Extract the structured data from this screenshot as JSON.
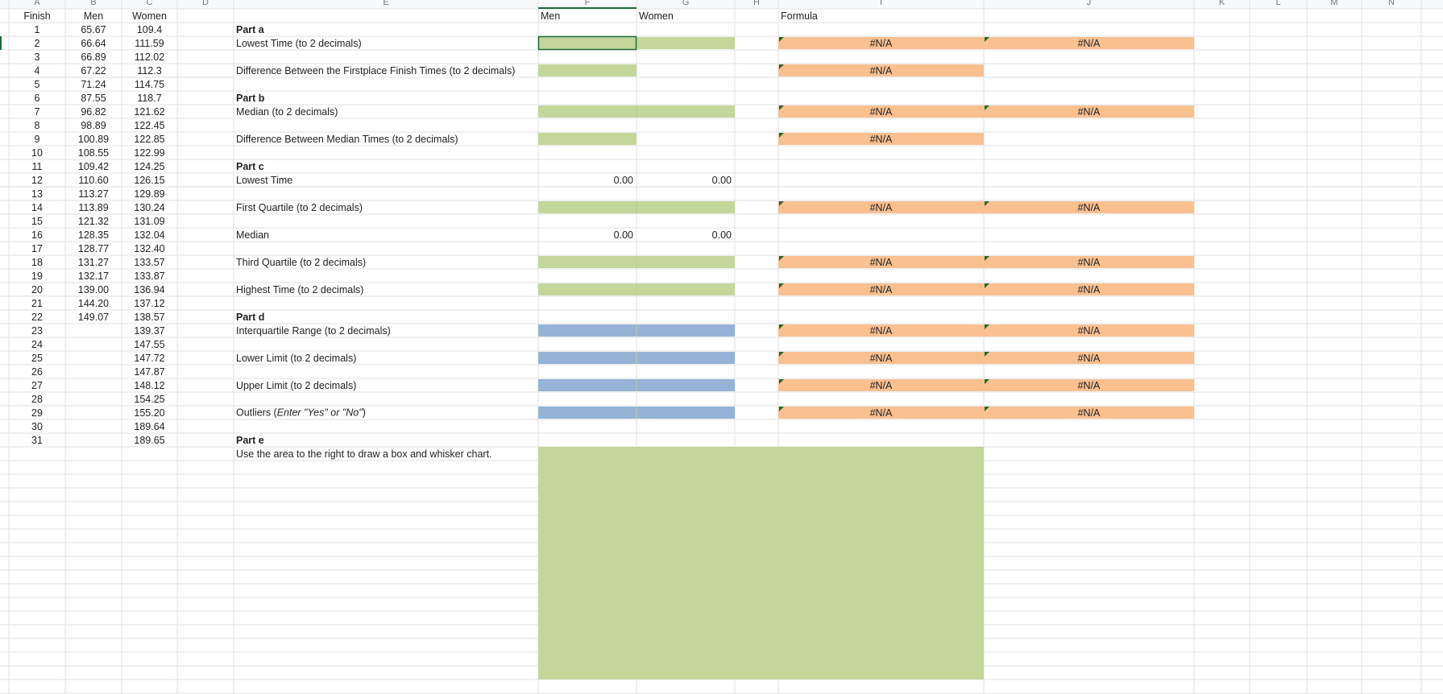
{
  "column_letters": [
    "A",
    "B",
    "C",
    "D",
    "E",
    "F",
    "G",
    "H",
    "I",
    "J",
    "K",
    "L",
    "M",
    "N"
  ],
  "header": {
    "finish": "Finish",
    "men": "Men",
    "women": "Women"
  },
  "answer_header": {
    "men": "Men",
    "women": "Women",
    "formula": "Formula"
  },
  "fills": {
    "green": "#c4d79b",
    "blue": "#95b3d7",
    "formula": "#fac090",
    "marker": "#1e6b2a"
  },
  "finish_table": [
    [
      1,
      "65.67",
      "109.4"
    ],
    [
      2,
      "66.64",
      "111.59"
    ],
    [
      3,
      "66.89",
      "112.02"
    ],
    [
      4,
      "67.22",
      "112.3"
    ],
    [
      5,
      "71.24",
      "114.75"
    ],
    [
      6,
      "87.55",
      "118.7"
    ],
    [
      7,
      "96.82",
      "121.62"
    ],
    [
      8,
      "98.89",
      "122.45"
    ],
    [
      9,
      "100.89",
      "122.85"
    ],
    [
      10,
      "108.55",
      "122.99"
    ],
    [
      11,
      "109.42",
      "124.25"
    ],
    [
      12,
      "110.60",
      "126.15"
    ],
    [
      13,
      "113.27",
      "129.89"
    ],
    [
      14,
      "113.89",
      "130.24"
    ],
    [
      15,
      "121.32",
      "131.09"
    ],
    [
      16,
      "128.35",
      "132.04"
    ],
    [
      17,
      "128.77",
      "132.40"
    ],
    [
      18,
      "131.27",
      "133.57"
    ],
    [
      19,
      "132.17",
      "133.87"
    ],
    [
      20,
      "139.00",
      "136.94"
    ],
    [
      21,
      "144.20",
      "137.12"
    ],
    [
      22,
      "149.07",
      "138.57"
    ],
    [
      23,
      null,
      "139.37"
    ],
    [
      24,
      null,
      "147.55"
    ],
    [
      25,
      null,
      "147.72"
    ],
    [
      26,
      null,
      "147.87"
    ],
    [
      27,
      null,
      "148.12"
    ],
    [
      28,
      null,
      "154.25"
    ],
    [
      29,
      null,
      "155.20"
    ],
    [
      30,
      null,
      "189.64"
    ],
    [
      31,
      null,
      "189.65"
    ]
  ],
  "worksheet": [
    {
      "label": "Part a",
      "heading": true
    },
    {
      "label": "Lowest Time (to 2 decimals)",
      "input": "green",
      "span": "both",
      "formula": [
        "#N/A",
        "#N/A"
      ]
    },
    null,
    {
      "label": "Difference Between the Firstplace Finish Times (to 2 decimals)",
      "input": "green",
      "span": "men",
      "formula": [
        "#N/A"
      ]
    },
    null,
    {
      "label": "Part b",
      "heading": true
    },
    {
      "label": "Median (to 2 decimals)",
      "input": "green",
      "span": "both",
      "formula": [
        "#N/A",
        "#N/A"
      ]
    },
    null,
    {
      "label": "Difference Between Median Times (to 2 decimals)",
      "input": "green",
      "span": "men",
      "formula": [
        "#N/A"
      ]
    },
    null,
    {
      "label": "Part c",
      "heading": true
    },
    {
      "label": "Lowest Time",
      "men_value": "0.00",
      "women_value": "0.00"
    },
    null,
    {
      "label": "First Quartile (to 2 decimals)",
      "input": "green",
      "span": "both",
      "formula": [
        "#N/A",
        "#N/A"
      ]
    },
    null,
    {
      "label": "Median",
      "men_value": "0.00",
      "women_value": "0.00"
    },
    null,
    {
      "label": "Third Quartile (to 2 decimals)",
      "input": "green",
      "span": "both",
      "formula": [
        "#N/A",
        "#N/A"
      ]
    },
    null,
    {
      "label": "Highest Time (to 2 decimals)",
      "input": "green",
      "span": "both",
      "formula": [
        "#N/A",
        "#N/A"
      ]
    },
    null,
    {
      "label": "Part d",
      "heading": true
    },
    {
      "label": "Interquartile Range (to 2 decimals)",
      "input": "blue",
      "span": "both",
      "formula": [
        "#N/A",
        "#N/A"
      ]
    },
    null,
    {
      "label": "Lower Limit (to 2 decimals)",
      "input": "blue",
      "span": "both",
      "formula": [
        "#N/A",
        "#N/A"
      ]
    },
    null,
    {
      "label": "Upper Limit (to 2 decimals)",
      "input": "blue",
      "span": "both",
      "formula": [
        "#N/A",
        "#N/A"
      ]
    },
    null,
    {
      "label_parts": [
        {
          "text": "Outliers ("
        },
        {
          "text": "Enter \"Yes\" or \"No\"",
          "italic": true
        },
        {
          "text": ")"
        }
      ],
      "input": "blue",
      "span": "both",
      "formula": [
        "#N/A",
        "#N/A"
      ]
    },
    null,
    {
      "label": "Part e",
      "heading": true
    },
    {
      "label": "Use the area to the right to draw a box and whisker chart.",
      "draw_area": "green"
    }
  ]
}
